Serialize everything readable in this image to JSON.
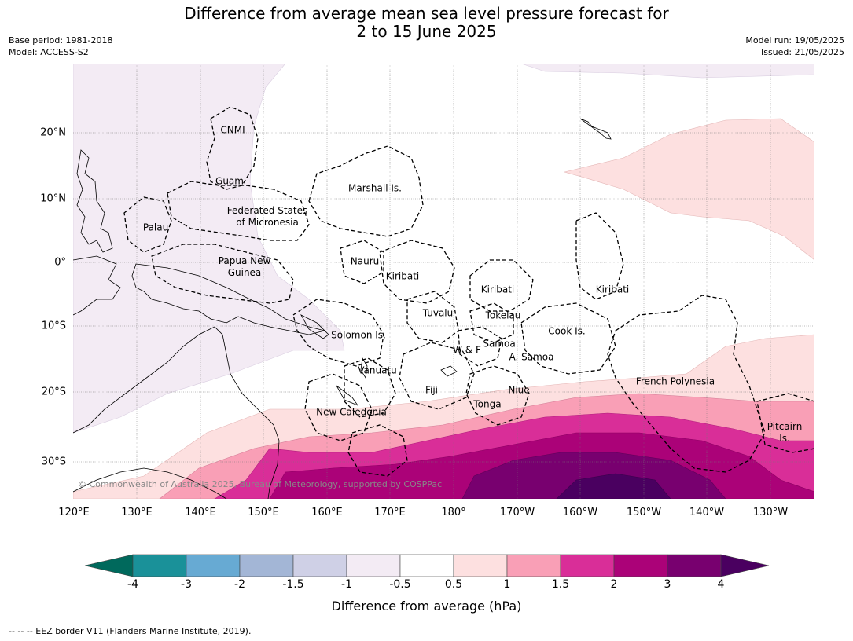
{
  "header": {
    "title_line1": "Difference from average mean sea level pressure forecast for",
    "title_line2": "2 to 15 June 2025",
    "base_period": "Base period: 1981-2018",
    "model": "Model: ACCESS-S2",
    "model_run": "Model run: 19/05/2025",
    "issued": "Issued: 21/05/2025"
  },
  "map": {
    "longitude_labels": [
      "120°E",
      "130°E",
      "140°E",
      "150°E",
      "160°E",
      "170°E",
      "180°",
      "170°W",
      "160°W",
      "150°W",
      "140°W",
      "130°W"
    ],
    "latitude_labels": [
      "20°N",
      "10°N",
      "0°",
      "10°S",
      "20°S",
      "30°S"
    ],
    "places": [
      {
        "name": "CNMI"
      },
      {
        "name": "Guam"
      },
      {
        "name": "Marshall Is."
      },
      {
        "name": "Federated States\nof Micronesia"
      },
      {
        "name": "Palau"
      },
      {
        "name": "Papua New\nGuinea"
      },
      {
        "name": "Nauru"
      },
      {
        "name": "Kiribati"
      },
      {
        "name": "Kiribati"
      },
      {
        "name": "Kiribati"
      },
      {
        "name": "Tuvalu"
      },
      {
        "name": "Tokelau"
      },
      {
        "name": "Cook Is."
      },
      {
        "name": "Solomon Is."
      },
      {
        "name": "W & F"
      },
      {
        "name": "Samoa"
      },
      {
        "name": "A. Samoa"
      },
      {
        "name": "Vanuatu"
      },
      {
        "name": "Fiji"
      },
      {
        "name": "Niue"
      },
      {
        "name": "French Polynesia"
      },
      {
        "name": "Tonga"
      },
      {
        "name": "New Caledonia"
      },
      {
        "name": "Pitcairn\nIs."
      }
    ],
    "copyright": "© Commonwealth of Australia 2025, Bureau of Meteorology, supported by COSPPac"
  },
  "colorbar": {
    "ticks": [
      "-4",
      "-3",
      "-2",
      "-1.5",
      "-1",
      "-0.5",
      "0.5",
      "1",
      "1.5",
      "2",
      "3",
      "4"
    ],
    "colors": [
      "#1a9199",
      "#67aad3",
      "#a3b6d6",
      "#cfd0e6",
      "#f3ebf4",
      "#ffffff",
      "#fde0e0",
      "#f99fb6",
      "#d92e98",
      "#ab0278",
      "#78006f"
    ],
    "under_color": "#00695c",
    "over_color": "#4a0060",
    "label": "Difference from average (hPa)"
  },
  "footer": "--  --  -- EEZ border V11 (Flanders Marine Institute, 2019)."
}
